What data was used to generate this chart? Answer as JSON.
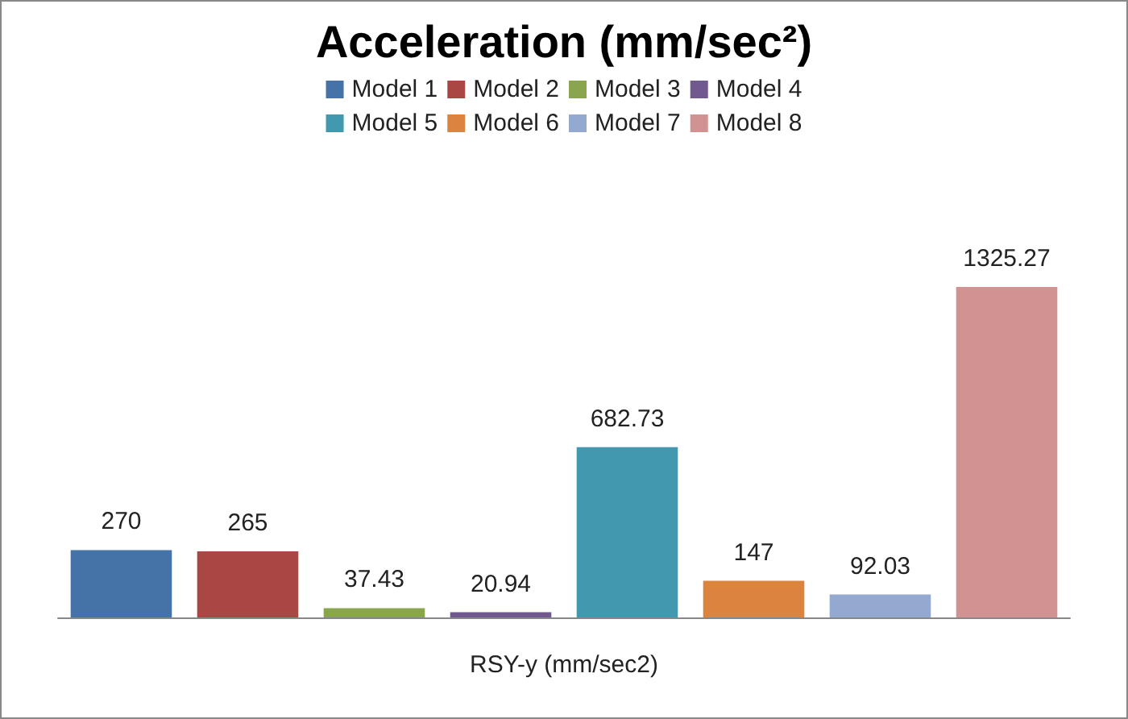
{
  "chart_data": {
    "type": "bar",
    "title": "Acceleration (mm/sec²)",
    "xlabel": "RSY-y (mm/sec2)",
    "categories": [
      null,
      null,
      null,
      null,
      null,
      null,
      null,
      null
    ],
    "series": [
      {
        "name": "Model 1",
        "color": "#4572a7",
        "values": [
          270,
          null,
          null,
          null,
          null,
          null,
          null,
          null
        ]
      },
      {
        "name": "Model 2",
        "color": "#aa4643",
        "values": [
          null,
          265,
          null,
          null,
          null,
          null,
          null,
          null
        ]
      },
      {
        "name": "Model 3",
        "color": "#89a54e",
        "values": [
          null,
          null,
          37.43,
          null,
          null,
          null,
          null,
          null
        ]
      },
      {
        "name": "Model 4",
        "color": "#71588f",
        "values": [
          null,
          null,
          null,
          20.94,
          null,
          null,
          null,
          null
        ]
      },
      {
        "name": "Model 5",
        "color": "#4198af",
        "values": [
          null,
          null,
          null,
          null,
          682.73,
          null,
          null,
          null
        ]
      },
      {
        "name": "Model 6",
        "color": "#db843d",
        "values": [
          null,
          null,
          null,
          null,
          null,
          147,
          null,
          null
        ]
      },
      {
        "name": "Model 7",
        "color": "#93a9cf",
        "values": [
          null,
          null,
          null,
          null,
          null,
          null,
          92.03,
          null
        ]
      },
      {
        "name": "Model 8",
        "color": "#d19392",
        "values": [
          null,
          null,
          null,
          null,
          null,
          null,
          null,
          1325.27
        ]
      }
    ],
    "stacked": true,
    "data_labels": true,
    "legend": "top",
    "grid": false
  }
}
